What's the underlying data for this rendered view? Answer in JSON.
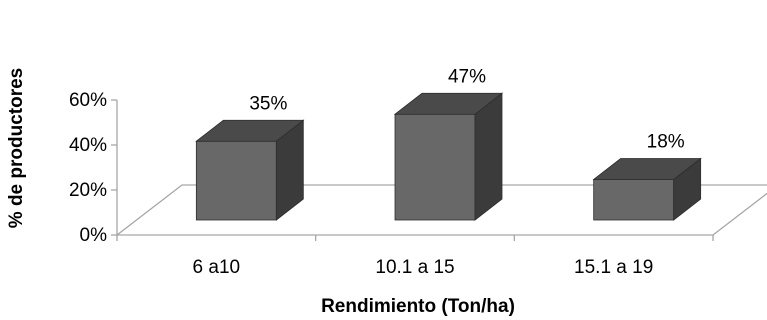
{
  "chart_data": {
    "type": "bar",
    "title": "",
    "xlabel": "Rendimiento (Ton/ha)",
    "ylabel": "% de productores",
    "categories": [
      "6 a10",
      "10.1 a 15",
      "15.1 a 19"
    ],
    "values": [
      35,
      47,
      18
    ],
    "data_labels": [
      "35%",
      "47%",
      "18%"
    ],
    "ylim": [
      0,
      60
    ],
    "y_ticks": [
      0,
      20,
      40,
      60
    ],
    "y_tick_labels": [
      "0%",
      "20%",
      "40%",
      "60%"
    ],
    "grid": false,
    "legend": "none",
    "style": "3d-column",
    "colors": {
      "bar_front": "#686868",
      "bar_top": "#4a4a4a",
      "bar_side": "#3b3b3b",
      "bar_edge": "#2e2e2e",
      "axis": "#a6a6a6"
    }
  }
}
